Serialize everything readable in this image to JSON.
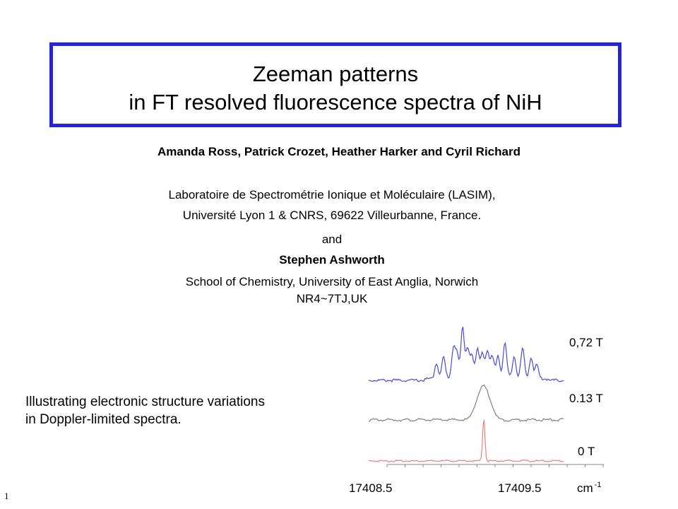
{
  "slide": {
    "title_line1": "Zeeman patterns",
    "title_line2": "in FT resolved  fluorescence spectra of NiH",
    "authors": "Amanda Ross,  Patrick Crozet, Heather Harker and Cyril Richard",
    "affiliation1_line1": "Laboratoire de Spectrométrie Ionique et Moléculaire (LASIM),",
    "affiliation1_line2": "Université Lyon 1 & CNRS,    69622 Villeurbanne, France.",
    "and": "and",
    "coauthor": "Stephen Ashworth",
    "affiliation2_line1": "School of Chemistry, University of East Anglia, Norwich",
    "affiliation2_line2": "NR4~7TJ,UK",
    "note_line1": "Illustrating electronic structure variations",
    "note_line2": "in Doppler-limited spectra.",
    "slide_number": "1",
    "title_border_color": "#2424d6"
  },
  "chart_data": {
    "type": "line",
    "x_ticks": [
      "17408.5",
      "17409.5"
    ],
    "x_unit": "cm",
    "x_unit_exponent": "-1",
    "series": [
      {
        "name": "0,72 T",
        "color": "#4a4ad8"
      },
      {
        "name": "0.13 T",
        "color": "#808080"
      },
      {
        "name": "0  T",
        "color": "#e88080"
      }
    ]
  }
}
